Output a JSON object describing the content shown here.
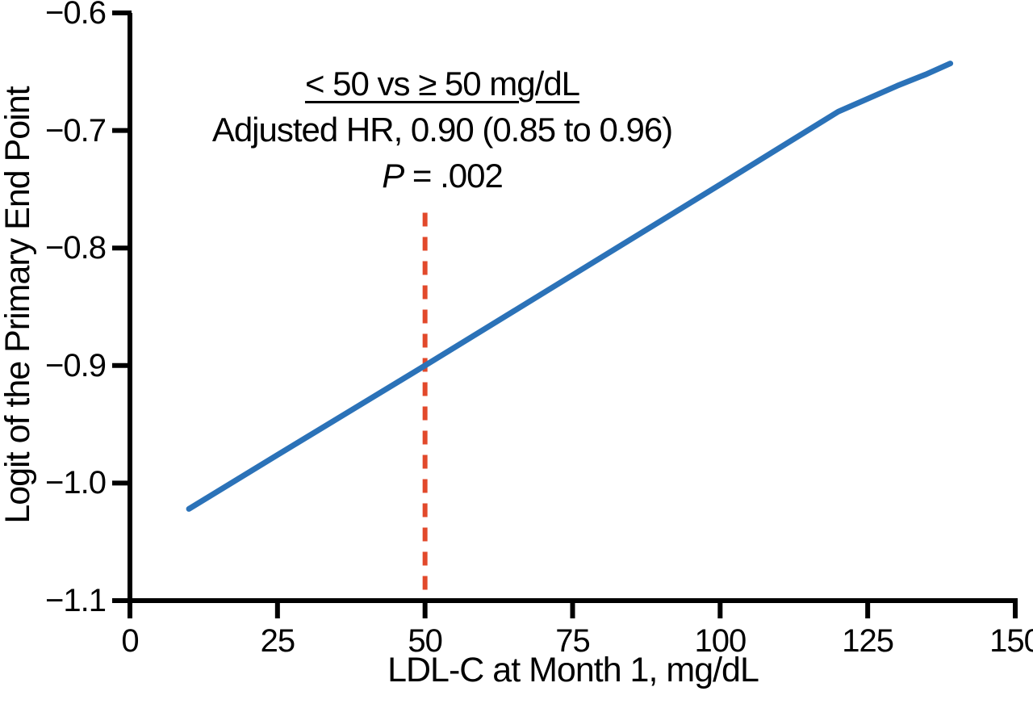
{
  "figure": {
    "background": "#ffffff",
    "axis_color": "#000000"
  },
  "chart_data": {
    "type": "line",
    "title": "",
    "xlabel": "LDL-C at Month 1, mg/dL",
    "ylabel": "Logit of the Primary End Point",
    "xlim": [
      0,
      150
    ],
    "ylim": [
      -1.1,
      -0.6
    ],
    "grid": false,
    "legend": "none",
    "x_ticks": {
      "values": [
        0,
        25,
        50,
        75,
        100,
        125,
        150
      ],
      "labels": [
        "0",
        "25",
        "50",
        "75",
        "100",
        "125",
        "150"
      ]
    },
    "y_ticks": {
      "values": [
        -0.6,
        -0.7,
        -0.8,
        -0.9,
        -1.0,
        -1.1
      ],
      "labels": [
        "−0.6",
        "−0.7",
        "−0.8",
        "−0.9",
        "−1.0",
        "−1.1"
      ]
    },
    "series": [
      {
        "name": "logit-of-primary-end-point",
        "color": "#2B72B8",
        "stroke_width": 7,
        "points": [
          [
            10,
            -1.022
          ],
          [
            25,
            -0.976
          ],
          [
            50,
            -0.9
          ],
          [
            75,
            -0.823
          ],
          [
            100,
            -0.746
          ],
          [
            110,
            -0.715
          ],
          [
            120,
            -0.684
          ],
          [
            125,
            -0.673
          ],
          [
            130,
            -0.662
          ],
          [
            135,
            -0.652
          ],
          [
            139,
            -0.643
          ]
        ]
      }
    ],
    "reference_line": {
      "axis": "x",
      "value": 50,
      "color": "#E2492B",
      "style": "dashed",
      "stroke_width": 6,
      "y_from": -0.77,
      "y_to": -1.1
    },
    "annotation": {
      "heading": "< 50 vs ≥ 50 mg/dL",
      "hr_line": "Adjusted HR, 0.90 (0.85 to 0.96)",
      "p_label": "P",
      "p_rest": " = .002"
    }
  }
}
